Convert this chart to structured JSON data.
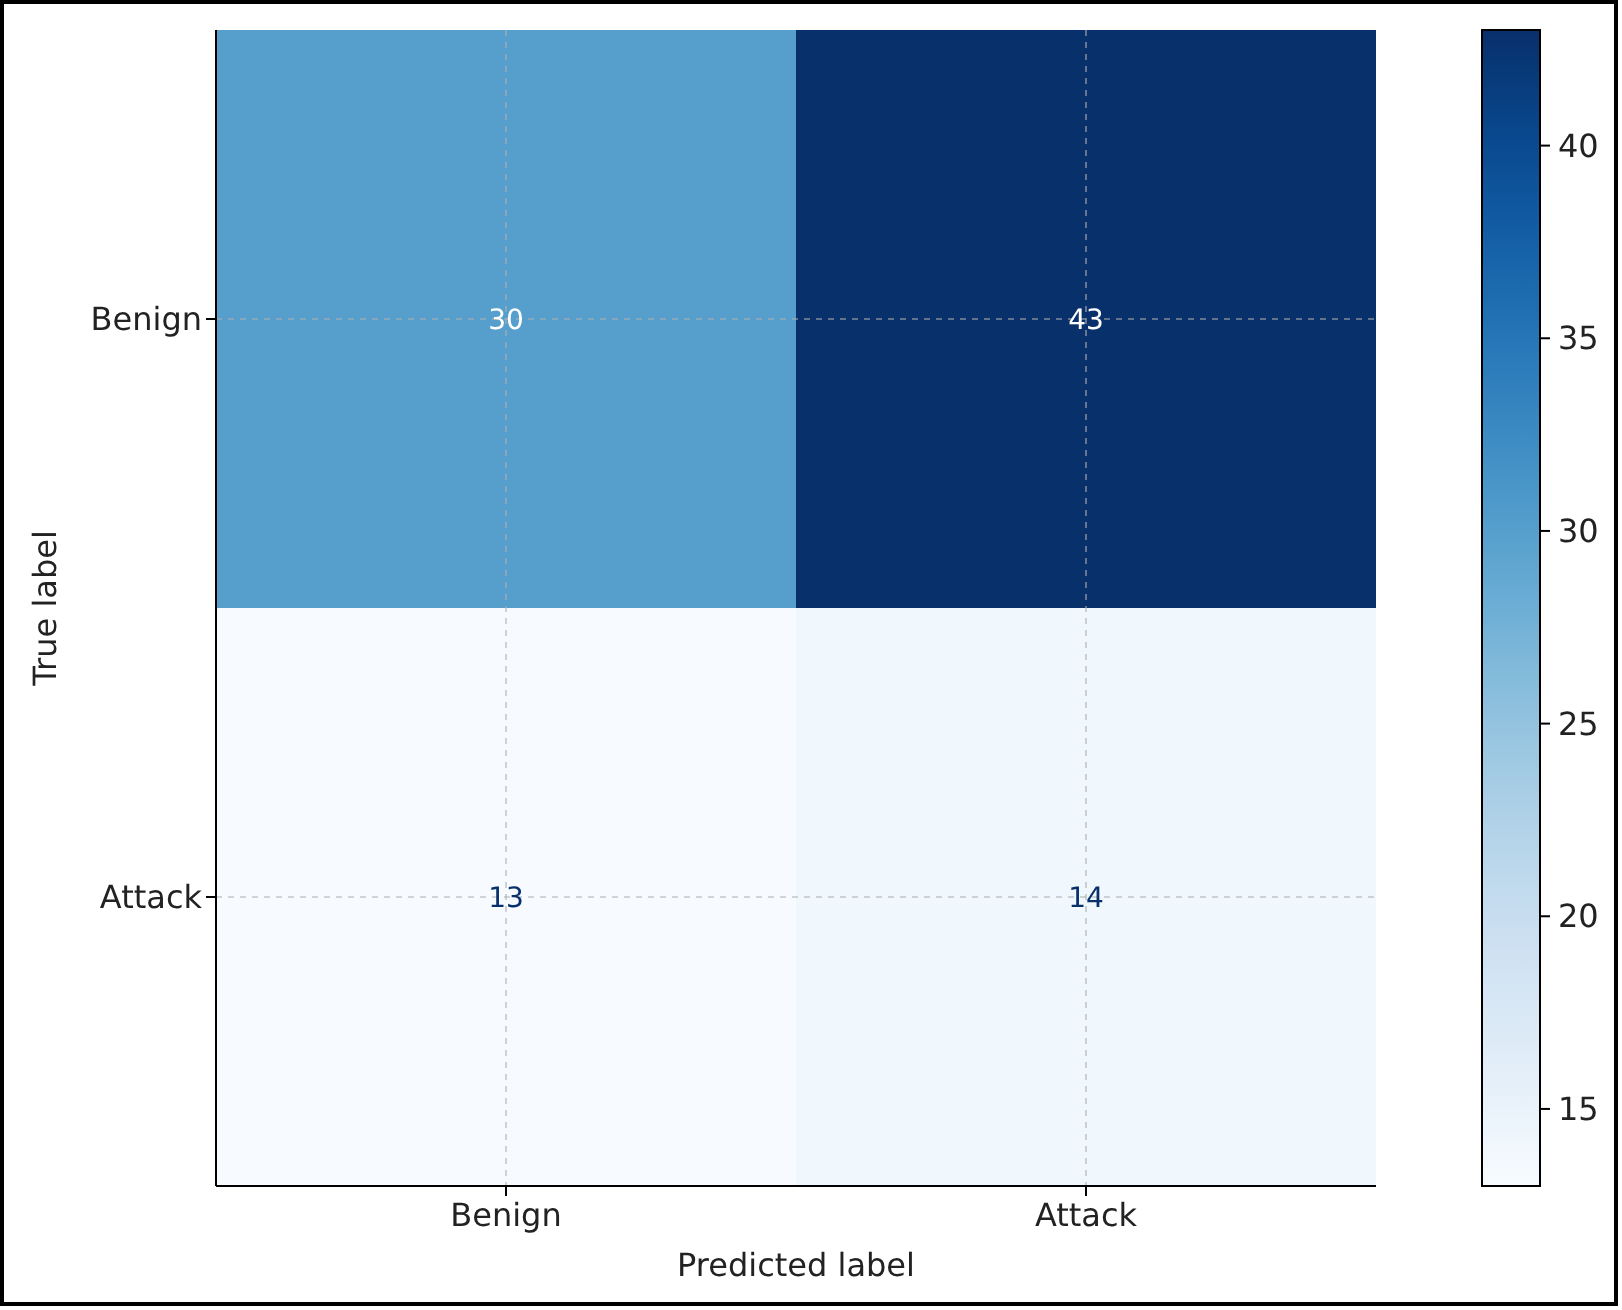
{
  "chart_data": {
    "type": "heatmap",
    "xlabel": "Predicted label",
    "ylabel": "True label",
    "categories": [
      "Benign",
      "Attack"
    ],
    "y_categories": [
      "Benign",
      "Attack"
    ],
    "cells": [
      [
        30,
        43
      ],
      [
        13,
        14
      ]
    ],
    "clim": [
      13,
      43
    ],
    "cticks": [
      15,
      20,
      25,
      30,
      35,
      40
    ],
    "data_labels": true,
    "grid": true
  }
}
